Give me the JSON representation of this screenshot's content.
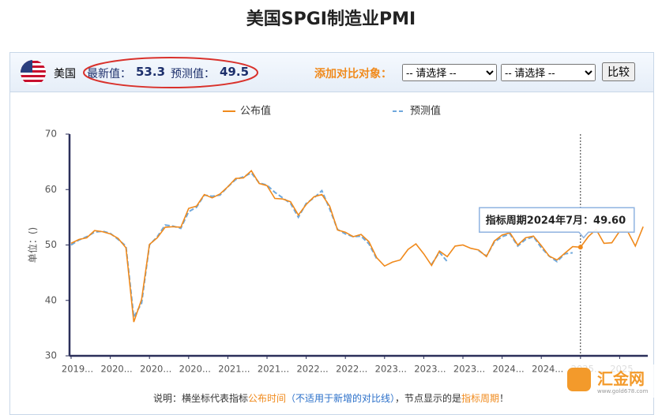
{
  "page": {
    "title": "美国SPGI制造业PMI",
    "country": "美国",
    "latest_label": "最新值：",
    "latest": "53.3",
    "forecast_label": "预测值：",
    "forecast": "49.5",
    "compare_label": "添加对比对象：",
    "selects": [
      "-- 请选择 --",
      "-- 请选择 --"
    ],
    "compare_button": "比较",
    "note": [
      "说明：横坐标代表指标",
      "公布时间",
      "（不适用于新增的对比线）",
      "，节点显示的是",
      "指标周期",
      "！"
    ],
    "watermark": "汇金网",
    "watermark_url": "www.gold678.com"
  },
  "chart_data": {
    "type": "line",
    "y_label": "单位：()",
    "categories": [
      "2019...",
      null,
      null,
      null,
      null,
      "2020...",
      null,
      null,
      null,
      null,
      "2020...",
      null,
      null,
      null,
      null,
      "2020...",
      null,
      null,
      null,
      null,
      "2021...",
      null,
      null,
      null,
      null,
      "2021...",
      null,
      null,
      null,
      null,
      "2022...",
      null,
      null,
      null,
      null,
      "2022...",
      null,
      null,
      null,
      null,
      "2023...",
      null,
      null,
      null,
      null,
      "2023...",
      null,
      null,
      null,
      null,
      "2023...",
      null,
      null,
      null,
      null,
      "2024...",
      null,
      null,
      null,
      null,
      "2024...",
      null,
      null,
      null,
      null,
      "2025...",
      null,
      null,
      null,
      null,
      "2025...",
      null,
      null,
      null
    ],
    "series": [
      {
        "name": "公布值",
        "color": "#f08a1c",
        "dashed": false,
        "values": [
          50.3,
          51.0,
          51.3,
          52.6,
          52.4,
          52.0,
          51.2,
          49.5,
          36.1,
          40.2,
          50.1,
          51.3,
          53.2,
          53.3,
          53.2,
          56.6,
          57.0,
          59.1,
          58.5,
          59.2,
          60.5,
          62.0,
          62.1,
          63.4,
          61.1,
          60.7,
          58.4,
          58.3,
          57.8,
          55.4,
          57.3,
          58.7,
          59.1,
          57.0,
          52.7,
          52.3,
          51.5,
          51.9,
          50.6,
          47.7,
          46.2,
          46.9,
          47.3,
          49.2,
          50.2,
          48.4,
          46.3,
          48.9,
          47.9,
          49.8,
          50.0,
          49.4,
          49.1,
          47.9,
          50.7,
          51.8,
          52.2,
          50.0,
          51.3,
          51.6,
          49.9,
          48.0,
          47.3,
          48.5,
          49.7,
          49.6,
          51.5,
          52.8,
          50.3,
          50.4,
          52.5,
          52.5,
          49.8,
          53.3
        ]
      },
      {
        "name": "预测值",
        "color": "#6fa8dc",
        "dashed": true,
        "values": [
          50.0,
          50.9,
          51.5,
          52.3,
          52.5,
          52.1,
          51.0,
          49.8,
          37.0,
          39.5,
          50.0,
          51.5,
          53.6,
          53.4,
          53.0,
          56.0,
          56.8,
          59.0,
          58.8,
          59.0,
          60.5,
          61.8,
          62.3,
          63.0,
          61.2,
          60.8,
          59.5,
          58.5,
          57.5,
          55.0,
          57.5,
          58.5,
          59.8,
          56.5,
          52.8,
          52.0,
          51.5,
          51.6,
          50.2,
          47.5,
          null,
          null,
          null,
          null,
          null,
          null,
          46.5,
          48.7,
          47.0,
          null,
          null,
          null,
          49.0,
          48.0,
          50.5,
          51.5,
          52.0,
          49.8,
          51.0,
          51.5,
          49.5,
          48.0,
          47.0,
          48.4,
          48.6,
          null,
          null,
          null,
          null,
          null,
          null,
          null,
          null,
          null
        ]
      }
    ],
    "ylim": [
      30,
      70
    ],
    "yticks": [
      30,
      40,
      50,
      60,
      70
    ],
    "tooltip": {
      "index": 65,
      "label": "指标周期2024年7月：",
      "value_label": "49.60"
    }
  }
}
